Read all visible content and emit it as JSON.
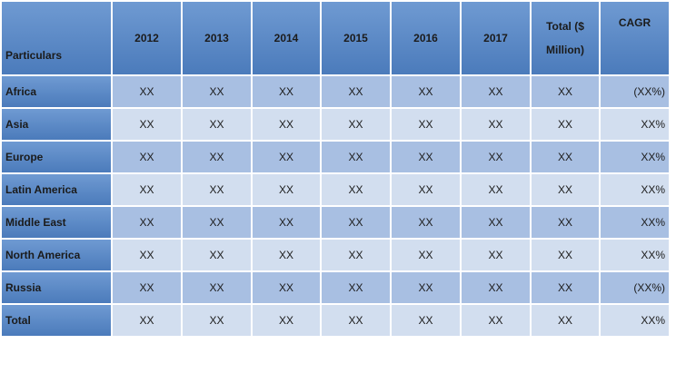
{
  "table": {
    "header": [
      "Particulars",
      "2012",
      "2013",
      "2014",
      "2015",
      "2016",
      "2017",
      "Total ($ Million)",
      "CAGR"
    ],
    "rows": [
      [
        "Africa",
        "XX",
        "XX",
        "XX",
        "XX",
        "XX",
        "XX",
        "XX",
        "(XX%)"
      ],
      [
        "Asia",
        "XX",
        "XX",
        "XX",
        "XX",
        "XX",
        "XX",
        "XX",
        "XX%"
      ],
      [
        "Europe",
        "XX",
        "XX",
        "XX",
        "XX",
        "XX",
        "XX",
        "XX",
        "XX%"
      ],
      [
        "Latin America",
        "XX",
        "XX",
        "XX",
        "XX",
        "XX",
        "XX",
        "XX",
        "XX%"
      ],
      [
        "Middle East",
        "XX",
        "XX",
        "XX",
        "XX",
        "XX",
        "XX",
        "XX",
        "XX%"
      ],
      [
        "North America",
        "XX",
        "XX",
        "XX",
        "XX",
        "XX",
        "XX",
        "XX",
        "XX%"
      ],
      [
        "Russia",
        "XX",
        "XX",
        "XX",
        "XX",
        "XX",
        "XX",
        "XX",
        "(XX%)"
      ],
      [
        "Total",
        "XX",
        "XX",
        "XX",
        "XX",
        "XX",
        "XX",
        "XX",
        "XX%"
      ]
    ]
  }
}
